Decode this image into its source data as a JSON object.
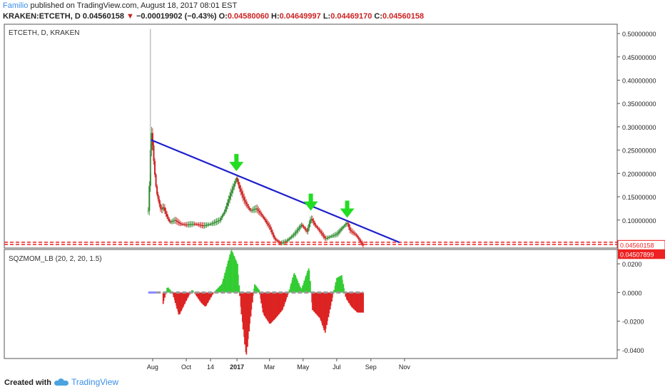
{
  "header": {
    "author": "Familio",
    "published_text": "published on TradingView.com, August 18, 2017 08:01 EST",
    "symbol": "KRAKEN:ETCETH, D",
    "last_price": "0.04560158",
    "change": "−0.00019902 (−0.43%)",
    "o_label": "O:",
    "o_value": "0.04580060",
    "h_label": "H:",
    "h_value": "0.04649997",
    "l_label": "L:",
    "l_value": "0.04469170",
    "c_label": "C:",
    "c_value": "0.04560158"
  },
  "colors": {
    "up": "#2e8b2e",
    "down": "#cc2222",
    "trendline": "#1f1fcc",
    "arrow": "#22dd22",
    "support": "#ee2222",
    "squeeze_on": "#111111",
    "squeeze_off": "#8888ff",
    "mom_pos": "#33cc33",
    "mom_neg": "#dd2222"
  },
  "chart_data": [
    {
      "type": "candlestick",
      "title": "ETCETH, D, KRAKEN",
      "yticks": [
        "0.50000000",
        "0.45000000",
        "0.40000000",
        "0.35000000",
        "0.30000000",
        "0.25000000",
        "0.20000000",
        "0.15000000",
        "0.10000000"
      ],
      "xticks": [
        "Aug",
        "Oct",
        "14",
        "2017",
        "Mar",
        "May",
        "Jul",
        "Sep",
        "Nov"
      ],
      "ylim": [
        0.04,
        0.52
      ],
      "last_price_label": "0.04560158",
      "support_label": "0.04507899",
      "price_path": [
        [
          "2016-07-24",
          0.12
        ],
        [
          "2016-07-27",
          0.2
        ],
        [
          "2016-07-29",
          0.3
        ],
        [
          "2016-08-01",
          0.26
        ],
        [
          "2016-08-04",
          0.21
        ],
        [
          "2016-08-08",
          0.16
        ],
        [
          "2016-08-12",
          0.14
        ],
        [
          "2016-08-16",
          0.12
        ],
        [
          "2016-08-20",
          0.13
        ],
        [
          "2016-08-26",
          0.11
        ],
        [
          "2016-09-01",
          0.095
        ],
        [
          "2016-09-10",
          0.1
        ],
        [
          "2016-09-20",
          0.092
        ],
        [
          "2016-10-01",
          0.09
        ],
        [
          "2016-10-15",
          0.092
        ],
        [
          "2016-11-01",
          0.088
        ],
        [
          "2016-11-15",
          0.092
        ],
        [
          "2016-12-01",
          0.1
        ],
        [
          "2016-12-10",
          0.12
        ],
        [
          "2016-12-20",
          0.155
        ],
        [
          "2016-12-31",
          0.19
        ],
        [
          "2017-01-05",
          0.17
        ],
        [
          "2017-01-15",
          0.14
        ],
        [
          "2017-01-25",
          0.12
        ],
        [
          "2017-02-05",
          0.125
        ],
        [
          "2017-02-15",
          0.11
        ],
        [
          "2017-03-01",
          0.085
        ],
        [
          "2017-03-10",
          0.06
        ],
        [
          "2017-03-20",
          0.05
        ],
        [
          "2017-04-01",
          0.055
        ],
        [
          "2017-04-15",
          0.07
        ],
        [
          "2017-04-28",
          0.09
        ],
        [
          "2017-05-08",
          0.075
        ],
        [
          "2017-05-15",
          0.105
        ],
        [
          "2017-05-22",
          0.09
        ],
        [
          "2017-06-01",
          0.075
        ],
        [
          "2017-06-10",
          0.06
        ],
        [
          "2017-06-20",
          0.065
        ],
        [
          "2017-07-01",
          0.07
        ],
        [
          "2017-07-10",
          0.082
        ],
        [
          "2017-07-20",
          0.095
        ],
        [
          "2017-07-25",
          0.078
        ],
        [
          "2017-08-05",
          0.068
        ],
        [
          "2017-08-12",
          0.055
        ],
        [
          "2017-08-18",
          0.0456
        ]
      ],
      "trendline": [
        [
          "2016-07-29",
          0.272
        ],
        [
          "2017-10-23",
          0.052
        ]
      ],
      "support_levels": [
        0.0524,
        0.0476
      ],
      "arrows": [
        [
          "2016-12-31",
          0.205
        ],
        [
          "2017-05-15",
          0.12
        ],
        [
          "2017-07-20",
          0.105
        ]
      ]
    },
    {
      "type": "bar",
      "title": "SQZMOM_LB (20, 2, 20, 1.5)",
      "yticks": [
        "0.0200",
        "0.0000",
        "-0.0200",
        "-0.0400"
      ],
      "ylim": [
        -0.046,
        0.03
      ],
      "momentum_path": [
        [
          "2016-08-20",
          -0.008
        ],
        [
          "2016-08-28",
          0.004
        ],
        [
          "2016-09-06",
          0.0
        ],
        [
          "2016-09-18",
          -0.016
        ],
        [
          "2016-10-02",
          -0.005
        ],
        [
          "2016-10-12",
          0.002
        ],
        [
          "2016-10-28",
          -0.007
        ],
        [
          "2016-11-05",
          -0.01
        ],
        [
          "2016-11-20",
          0.0
        ],
        [
          "2016-12-05",
          0.006
        ],
        [
          "2016-12-22",
          0.03
        ],
        [
          "2017-01-02",
          0.02
        ],
        [
          "2017-01-08",
          -0.01
        ],
        [
          "2017-01-18",
          -0.045
        ],
        [
          "2017-01-25",
          -0.02
        ],
        [
          "2017-02-02",
          0.006
        ],
        [
          "2017-02-10",
          0.002
        ],
        [
          "2017-02-18",
          -0.015
        ],
        [
          "2017-03-02",
          -0.022
        ],
        [
          "2017-03-12",
          -0.018
        ],
        [
          "2017-03-25",
          -0.012
        ],
        [
          "2017-04-05",
          0.0
        ],
        [
          "2017-04-15",
          0.014
        ],
        [
          "2017-04-28",
          0.002
        ],
        [
          "2017-05-12",
          0.018
        ],
        [
          "2017-05-18",
          -0.012
        ],
        [
          "2017-06-01",
          -0.018
        ],
        [
          "2017-06-10",
          -0.028
        ],
        [
          "2017-06-20",
          -0.01
        ],
        [
          "2017-07-01",
          0.01
        ],
        [
          "2017-07-10",
          0.012
        ],
        [
          "2017-07-18",
          -0.004
        ],
        [
          "2017-07-28",
          -0.01
        ],
        [
          "2017-08-08",
          -0.014
        ],
        [
          "2017-08-18",
          -0.014
        ]
      ],
      "squeeze_intervals_off": [
        [
          "2016-07-24",
          "2016-08-08"
        ]
      ]
    }
  ],
  "footer": {
    "created_with": "Created with",
    "brand": "TradingView"
  }
}
